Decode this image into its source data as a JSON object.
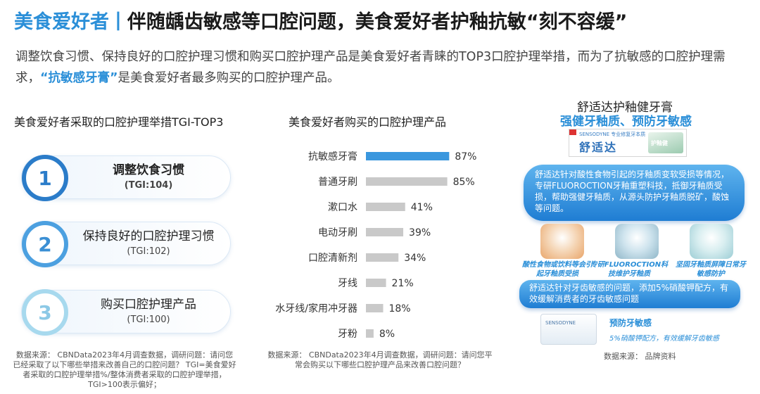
{
  "header": {
    "brand": "美食爱好者",
    "separator": "|",
    "headline": "伴随龋齿敏感等口腔问题，美食爱好者护釉抗敏“刻不容缓”"
  },
  "intro": {
    "before": "调整饮食习惯、保持良好的口腔护理习惯和购买口腔护理产品是美食爱好者青睐的TOP3口腔护理举措，而为了抗敏感的口腔护理需求，",
    "highlight": "“抗敏感牙膏”",
    "after": "是美食爱好者最多购买的口腔护理产品。"
  },
  "left": {
    "title": "美食爱好者采取的口腔护理举措TGI-TOP3",
    "items": [
      {
        "rank": "1",
        "name": "调整饮食习惯",
        "tgi": "(TGI:104)"
      },
      {
        "rank": "2",
        "name": "保持良好的口腔护理习惯",
        "tgi": "(TGI:102)"
      },
      {
        "rank": "3",
        "name": "购买口腔护理产品",
        "tgi": "(TGI:100)"
      }
    ],
    "source": "数据来源： CBNData2023年4月调查数据，调研问题：请问您已经采取了以下哪些举措来改善自己的口腔问题？ TGI=美食爱好者采取的口腔护理举措%/整体消费者采取的口腔护理举措，TGI>100表示偏好；"
  },
  "chart": {
    "title": "美食爱好者购买的口腔护理产品",
    "source": "数据来源： CBNData2023年4月调查数据，调研问题：请问您平常会购买以下哪些口腔护理产品来改善口腔问题？"
  },
  "chart_data": {
    "type": "bar",
    "orientation": "horizontal",
    "categories": [
      "抗敏感牙膏",
      "普通牙刷",
      "漱口水",
      "电动牙刷",
      "口腔清新剂",
      "牙线",
      "水牙线/家用冲牙器",
      "牙粉"
    ],
    "values": [
      87,
      85,
      41,
      39,
      34,
      21,
      18,
      8
    ],
    "value_labels": [
      "87%",
      "85%",
      "41%",
      "39%",
      "34%",
      "21%",
      "18%",
      "8%"
    ],
    "highlight_index": 0,
    "colors": {
      "highlight": "#3a97de",
      "default": "#c9c9c9"
    },
    "xlim": [
      0,
      100
    ],
    "grid": false,
    "legend": "none"
  },
  "product": {
    "name": "舒适达护釉健牙膏",
    "slogan": "强健牙釉质、预防牙敏感",
    "box_mini_text": "SENSODYNE 专业修复牙本质",
    "box_logo": "舒适达",
    "box_tube_text": "护釉健",
    "bubble1": "舒适达针对酸性食物引起的牙釉质变软受损等情况，专研FLUOROCTION牙釉重塑科技，抵御牙釉质受损，帮助强健牙釉质，从源头防护牙釉质脱矿，酸蚀等问题。",
    "features": [
      "酸性食物或饮料等会引起牙釉质受损",
      "专研FLUOROCTION科技维护牙釉质",
      "坚固牙釉质屏障日常牙敏感防护"
    ],
    "bubble2": "舒适达针对牙齿敏感的问题，添加5%硝酸钾配方，有效缓解消费者的牙齿敏感问题",
    "tube2_text": "SENSODYNE",
    "caption_title": "预防牙敏感",
    "caption_sub": "5%硝酸钾配方，有效缓解牙齿敏感",
    "source": "数据来源： 品牌资料"
  }
}
